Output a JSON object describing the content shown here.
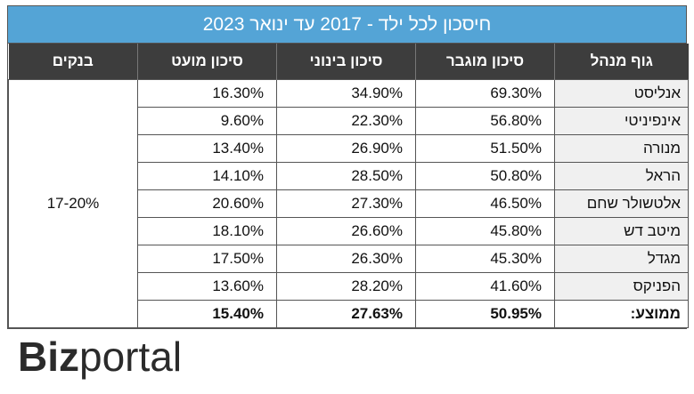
{
  "title": "חיסכון לכל ילד - 2017 עד ינואר 2023",
  "headers": {
    "fund": "גוף מנהל",
    "high": "סיכון מוגבר",
    "medium": "סיכון בינוני",
    "low": "סיכון מועט",
    "banks": "בנקים"
  },
  "rows": [
    {
      "fund": "אנליסט",
      "high": "69.30%",
      "medium": "34.90%",
      "low": "16.30%"
    },
    {
      "fund": "אינפיניטי",
      "high": "56.80%",
      "medium": "22.30%",
      "low": "9.60%"
    },
    {
      "fund": "מנורה",
      "high": "51.50%",
      "medium": "26.90%",
      "low": "13.40%"
    },
    {
      "fund": "הראל",
      "high": "50.80%",
      "medium": "28.50%",
      "low": "14.10%"
    },
    {
      "fund": "אלטשולר שחם",
      "high": "46.50%",
      "medium": "27.30%",
      "low": "20.60%"
    },
    {
      "fund": "מיטב דש",
      "high": "45.80%",
      "medium": "26.60%",
      "low": "18.10%"
    },
    {
      "fund": "מגדל",
      "high": "45.30%",
      "medium": "26.30%",
      "low": "17.50%"
    },
    {
      "fund": "הפניקס",
      "high": "41.60%",
      "medium": "28.20%",
      "low": "13.60%"
    }
  ],
  "average": {
    "fund": "ממוצע:",
    "high": "50.95%",
    "medium": "27.63%",
    "low": "15.40%"
  },
  "banks_value": "17-20%",
  "logo": {
    "text": "Bizportal",
    "color": "#2b2b2b"
  },
  "colors": {
    "title_bg": "#54a4d6",
    "header_bg": "#3d3d3d",
    "fund_bg": "#f0f0f0"
  }
}
